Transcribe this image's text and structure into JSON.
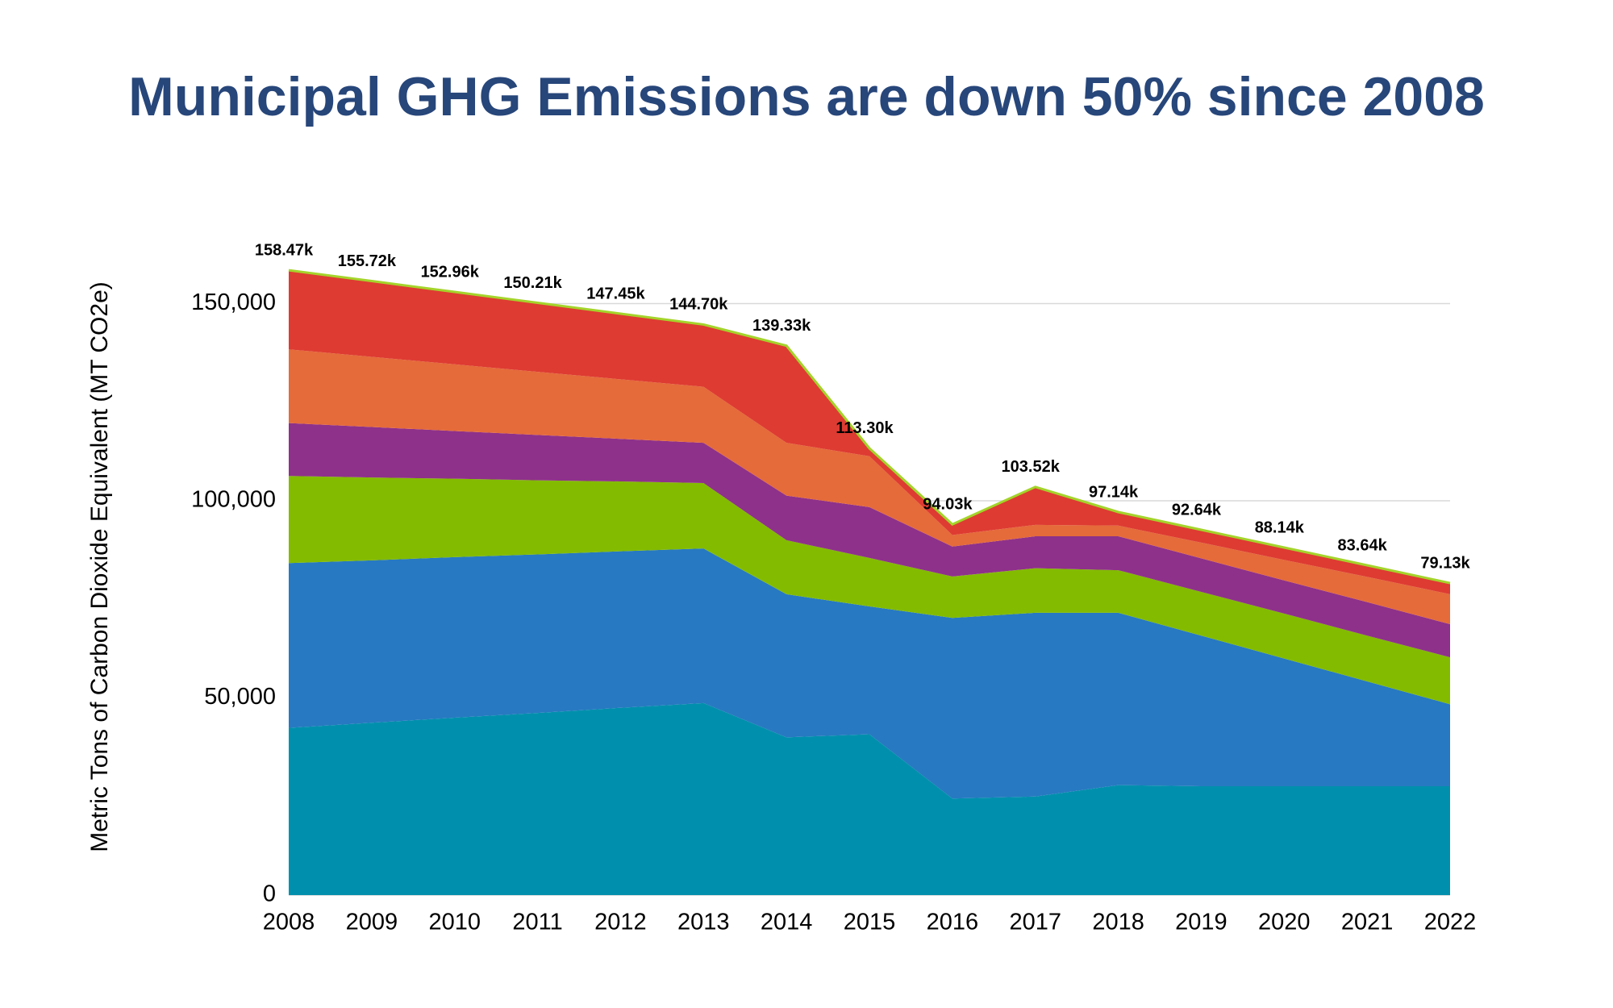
{
  "chart_data": {
    "type": "stacked_area",
    "title": "Municipal GHG Emissions are down 50% since 2008",
    "y_label": "Metric Tons of Carbon Dioxide Equivalent (MT CO2e)",
    "x": [
      2008,
      2009,
      2010,
      2011,
      2012,
      2013,
      2014,
      2015,
      2016,
      2017,
      2018,
      2019,
      2020,
      2021,
      2022
    ],
    "xlim": [
      2008,
      2022
    ],
    "ylim": [
      0,
      166667
    ],
    "yticks": [
      0,
      {
        "value": 50000,
        "label": "50,000"
      },
      {
        "value": 100000,
        "label": "100,000"
      },
      {
        "value": 150000,
        "label": "150,000"
      }
    ],
    "grid": true,
    "series": [
      {
        "color": "#0090ad",
        "values": [
          42400,
          43700,
          45000,
          46200,
          47500,
          48700,
          40000,
          40800,
          24500,
          25000,
          27900,
          27600,
          27600,
          27600,
          27600
        ]
      },
      {
        "color": "#2779c1",
        "values": [
          41800,
          41200,
          40700,
          40200,
          39700,
          39200,
          36300,
          32400,
          45800,
          46600,
          43700,
          38200,
          32400,
          26600,
          20800
        ]
      },
      {
        "color": "#83bb00",
        "values": [
          22100,
          21000,
          19900,
          18800,
          17700,
          16600,
          13700,
          12300,
          10500,
          11300,
          10800,
          11100,
          11400,
          11600,
          11900
        ]
      },
      {
        "color": "#8e318a",
        "values": [
          13400,
          12800,
          12100,
          11500,
          10800,
          10200,
          11300,
          12900,
          7600,
          8100,
          8600,
          8500,
          8400,
          8500,
          8400
        ]
      },
      {
        "color": "#e56b3a",
        "values": [
          18700,
          17800,
          16900,
          16000,
          15100,
          14200,
          13400,
          12900,
          2900,
          2900,
          2700,
          4000,
          5200,
          6400,
          7600
        ]
      },
      {
        "color": "#de3b32",
        "values": [
          20070,
          19220,
          18360,
          17510,
          16650,
          15800,
          24630,
          2000,
          2730,
          9620,
          3440,
          3240,
          3140,
          2940,
          2830
        ]
      }
    ],
    "totals": {
      "color": "#a4d42a",
      "values": [
        158470,
        155720,
        152960,
        150210,
        147450,
        144700,
        139330,
        113300,
        94030,
        103520,
        97140,
        92640,
        88140,
        83640,
        79130
      ],
      "value_labels": [
        "158.47k",
        "155.72k",
        "152.96k",
        "150.21k",
        "147.45k",
        "144.70k",
        "139.33k",
        "113.30k",
        "94.03k",
        "103.52k",
        "97.14k",
        "92.64k",
        "88.14k",
        "83.64k",
        "79.13k"
      ]
    }
  }
}
